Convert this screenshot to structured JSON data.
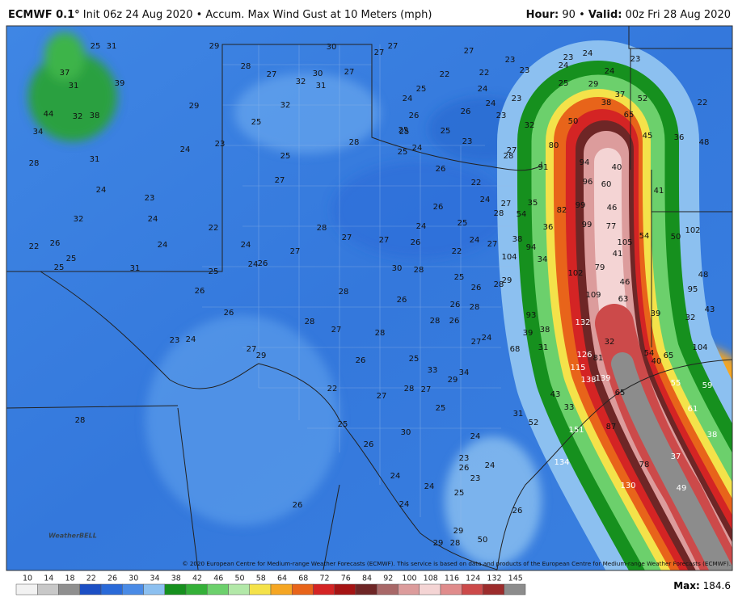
{
  "header": {
    "model": "ECMWF 0.1°",
    "init": "Init 06z 24 Aug 2020",
    "separator": "•",
    "field": "Accum. Max Wind Gust at 10 Meters (mph)",
    "hour_label": "Hour:",
    "hour": "90",
    "valid_label": "Valid:",
    "valid": "00z Fri 28 Aug 2020"
  },
  "map": {
    "logo": "WeatherBELL",
    "copyright": "© 2020 European Centre for Medium-range Weather Forecasts (ECMWF). This service is based on data and products of the European Centre for Medium-range Weather Forecasts (ECMWF).",
    "labels": [
      25,
      31,
      37,
      31,
      39,
      44,
      32,
      38,
      34,
      28,
      31,
      24,
      23,
      24,
      23,
      24,
      32,
      24,
      24,
      22,
      22,
      26,
      25,
      25,
      31,
      25,
      26,
      26,
      23,
      24,
      27,
      29,
      29,
      28,
      27,
      30,
      27,
      32,
      31,
      32,
      29,
      27,
      27,
      27,
      23,
      23,
      24,
      24,
      23,
      24,
      23,
      22,
      25,
      24,
      22,
      24,
      24,
      23,
      26,
      26,
      23,
      32,
      25,
      29,
      30,
      22,
      25,
      28,
      25,
      27,
      25,
      26,
      25,
      23,
      24,
      25,
      25,
      22,
      27,
      28,
      24,
      27,
      28,
      26,
      24,
      25,
      28,
      27,
      27,
      26,
      24,
      27,
      22,
      24,
      26,
      27,
      30,
      28,
      25,
      26,
      28,
      29,
      28,
      26,
      26,
      28,
      28,
      26,
      28,
      27,
      28,
      27,
      24,
      26,
      25,
      33,
      34,
      29,
      27,
      28,
      27,
      25,
      22,
      25,
      26,
      30,
      24,
      28,
      23,
      26,
      24,
      24,
      24,
      25,
      24,
      23,
      26,
      26,
      29,
      29,
      28,
      50,
      50,
      38,
      37,
      52,
      65,
      45,
      36,
      48,
      80,
      94,
      40,
      91,
      96,
      60,
      41,
      35,
      54,
      82,
      99,
      46,
      36,
      38,
      94,
      99,
      77,
      54,
      50,
      102,
      105,
      41,
      34,
      104,
      79,
      102,
      46,
      48,
      95,
      109,
      63,
      39,
      43,
      32,
      93,
      132,
      32,
      39,
      38,
      31,
      68,
      54,
      65,
      40,
      104,
      126,
      81,
      115,
      138,
      139,
      65,
      55,
      59,
      61,
      38,
      43,
      33,
      31,
      52,
      151,
      87,
      37,
      134,
      78,
      130,
      49
    ]
  },
  "legend": {
    "ticks": [
      10,
      14,
      18,
      22,
      26,
      30,
      34,
      38,
      42,
      46,
      50,
      58,
      64,
      68,
      72,
      76,
      84,
      92,
      100,
      108,
      116,
      124,
      132,
      145
    ],
    "colors": [
      "#f2f2f2",
      "#c8c8c8",
      "#8f8f8f",
      "#1c4fc4",
      "#2a6ad8",
      "#4a8be6",
      "#8cc0f0",
      "#16901e",
      "#34b038",
      "#6cd06c",
      "#b2e8a8",
      "#f4e24a",
      "#f5a623",
      "#e8641a",
      "#d42424",
      "#a51414",
      "#6e2626",
      "#a86868",
      "#dc9c9c",
      "#f4d4d4",
      "#e08c8c",
      "#cc4a4a",
      "#9c2c2c",
      "#8c8c8c"
    ],
    "max_label": "Max:",
    "max": "184.6"
  }
}
